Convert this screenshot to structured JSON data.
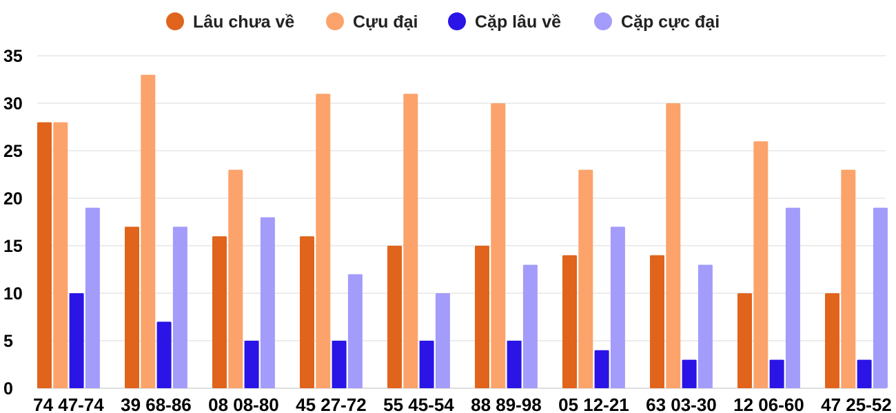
{
  "chart_data": {
    "type": "bar",
    "title": "",
    "xlabel": "",
    "ylabel": "",
    "ylim": [
      0,
      35
    ],
    "yticks": [
      0,
      5,
      10,
      15,
      20,
      25,
      30,
      35
    ],
    "grid": true,
    "legend_position": "top-center",
    "categories": [
      "74 47-74",
      "39 68-86",
      "08 08-80",
      "45 27-72",
      "55 45-54",
      "88 89-98",
      "05 12-21",
      "63 03-30",
      "12 06-60",
      "47 25-52"
    ],
    "series": [
      {
        "name": "Lâu chưa về",
        "color": "#e0641c",
        "values": [
          28,
          17,
          16,
          16,
          15,
          15,
          14,
          14,
          10,
          10
        ]
      },
      {
        "name": "Cựu đại",
        "color": "#fba36b",
        "values": [
          28,
          33,
          23,
          31,
          31,
          30,
          23,
          30,
          26,
          23
        ]
      },
      {
        "name": "Cặp lâu về",
        "color": "#2a14e6",
        "values": [
          10,
          7,
          5,
          5,
          5,
          5,
          4,
          3,
          3,
          3
        ]
      },
      {
        "name": "Cặp cực đại",
        "color": "#a39cfb",
        "values": [
          19,
          17,
          18,
          12,
          10,
          13,
          17,
          13,
          19,
          19
        ]
      }
    ]
  }
}
